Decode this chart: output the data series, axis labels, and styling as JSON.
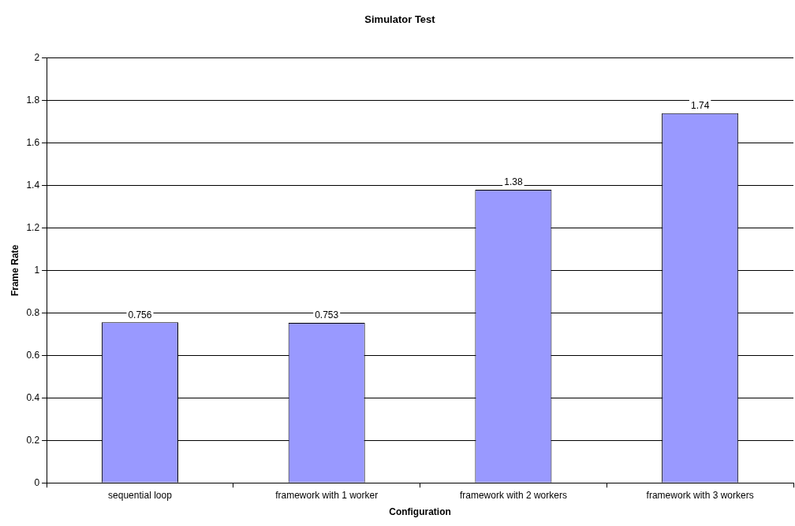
{
  "chart_data": {
    "type": "bar",
    "title": "Simulator Test",
    "xlabel": "Configuration",
    "ylabel": "Frame Rate",
    "categories": [
      "sequential loop",
      "framework with 1 worker",
      "framework with 2 workers",
      "framework with 3 workers"
    ],
    "values": [
      0.756,
      0.753,
      1.38,
      1.74
    ],
    "color": "#9999ff",
    "ylim": [
      0,
      2
    ],
    "yticks": [
      0,
      0.2,
      0.4,
      0.6,
      0.8,
      1,
      1.2,
      1.4,
      1.6,
      1.8,
      2
    ],
    "grid": "y",
    "data_labels": true,
    "legend": false
  }
}
